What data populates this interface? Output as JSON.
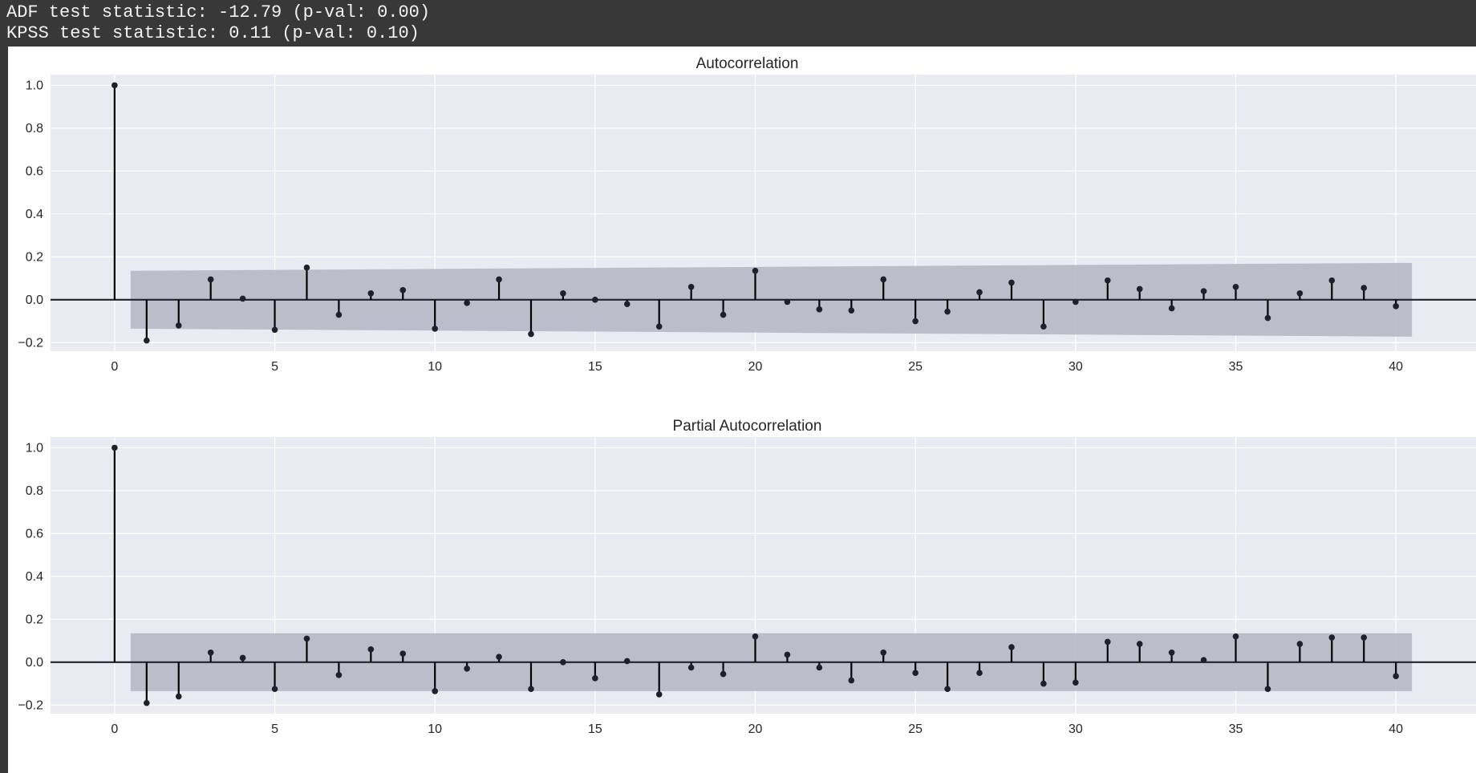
{
  "output": {
    "adf_line": "ADF test statistic: -12.79 (p-val: 0.00)",
    "kpss_line": "KPSS test statistic: 0.11 (p-val: 0.10)"
  },
  "colors": {
    "axes_bg": "#eaeaf2",
    "grid": "#ffffff",
    "stem": "#000000",
    "marker": "#1f1f2e",
    "band": "#b4b4c3",
    "zero_line": "#1f2233"
  },
  "chart_data": [
    {
      "type": "stem",
      "title": "Autocorrelation",
      "xlabel": "",
      "ylabel": "",
      "xlim": [
        -2,
        42.5
      ],
      "ylim": [
        -0.24,
        1.05
      ],
      "xticks": [
        0,
        5,
        10,
        15,
        20,
        25,
        30,
        35,
        40
      ],
      "yticks": [
        -0.2,
        0.0,
        0.2,
        0.4,
        0.6,
        0.8,
        1.0
      ],
      "grid": true,
      "lags": [
        0,
        1,
        2,
        3,
        4,
        5,
        6,
        7,
        8,
        9,
        10,
        11,
        12,
        13,
        14,
        15,
        16,
        17,
        18,
        19,
        20,
        21,
        22,
        23,
        24,
        25,
        26,
        27,
        28,
        29,
        30,
        31,
        32,
        33,
        34,
        35,
        36,
        37,
        38,
        39,
        40
      ],
      "values": [
        1.0,
        -0.19,
        -0.12,
        0.095,
        0.005,
        -0.14,
        0.15,
        -0.07,
        0.03,
        0.045,
        -0.135,
        -0.015,
        0.095,
        -0.16,
        0.03,
        0.0,
        -0.02,
        -0.125,
        0.06,
        -0.07,
        0.135,
        -0.01,
        -0.045,
        -0.05,
        0.095,
        -0.1,
        -0.055,
        0.035,
        0.08,
        -0.125,
        -0.01,
        0.09,
        0.05,
        -0.04,
        0.04,
        0.06,
        -0.085,
        0.03,
        0.09,
        0.055,
        -0.03
      ],
      "confint": {
        "x_start": 0.5,
        "x_end": 40.5,
        "upper": [
          0.135,
          0.172
        ],
        "lower": [
          -0.135,
          -0.172
        ]
      }
    },
    {
      "type": "stem",
      "title": "Partial Autocorrelation",
      "xlabel": "",
      "ylabel": "",
      "xlim": [
        -2,
        42.5
      ],
      "ylim": [
        -0.24,
        1.05
      ],
      "xticks": [
        0,
        5,
        10,
        15,
        20,
        25,
        30,
        35,
        40
      ],
      "yticks": [
        -0.2,
        0.0,
        0.2,
        0.4,
        0.6,
        0.8,
        1.0
      ],
      "grid": true,
      "lags": [
        0,
        1,
        2,
        3,
        4,
        5,
        6,
        7,
        8,
        9,
        10,
        11,
        12,
        13,
        14,
        15,
        16,
        17,
        18,
        19,
        20,
        21,
        22,
        23,
        24,
        25,
        26,
        27,
        28,
        29,
        30,
        31,
        32,
        33,
        34,
        35,
        36,
        37,
        38,
        39,
        40
      ],
      "values": [
        1.0,
        -0.19,
        -0.16,
        0.045,
        0.02,
        -0.125,
        0.11,
        -0.06,
        0.06,
        0.04,
        -0.135,
        -0.03,
        0.025,
        -0.125,
        0.0,
        -0.075,
        0.005,
        -0.15,
        -0.025,
        -0.055,
        0.12,
        0.035,
        -0.025,
        -0.085,
        0.045,
        -0.05,
        -0.125,
        -0.05,
        0.07,
        -0.1,
        -0.095,
        0.095,
        0.085,
        0.045,
        0.01,
        0.12,
        -0.125,
        0.085,
        0.115,
        0.115,
        -0.065
      ],
      "confint": {
        "x_start": 0.5,
        "x_end": 40.5,
        "upper": [
          0.135,
          0.135
        ],
        "lower": [
          -0.135,
          -0.135
        ]
      }
    }
  ]
}
